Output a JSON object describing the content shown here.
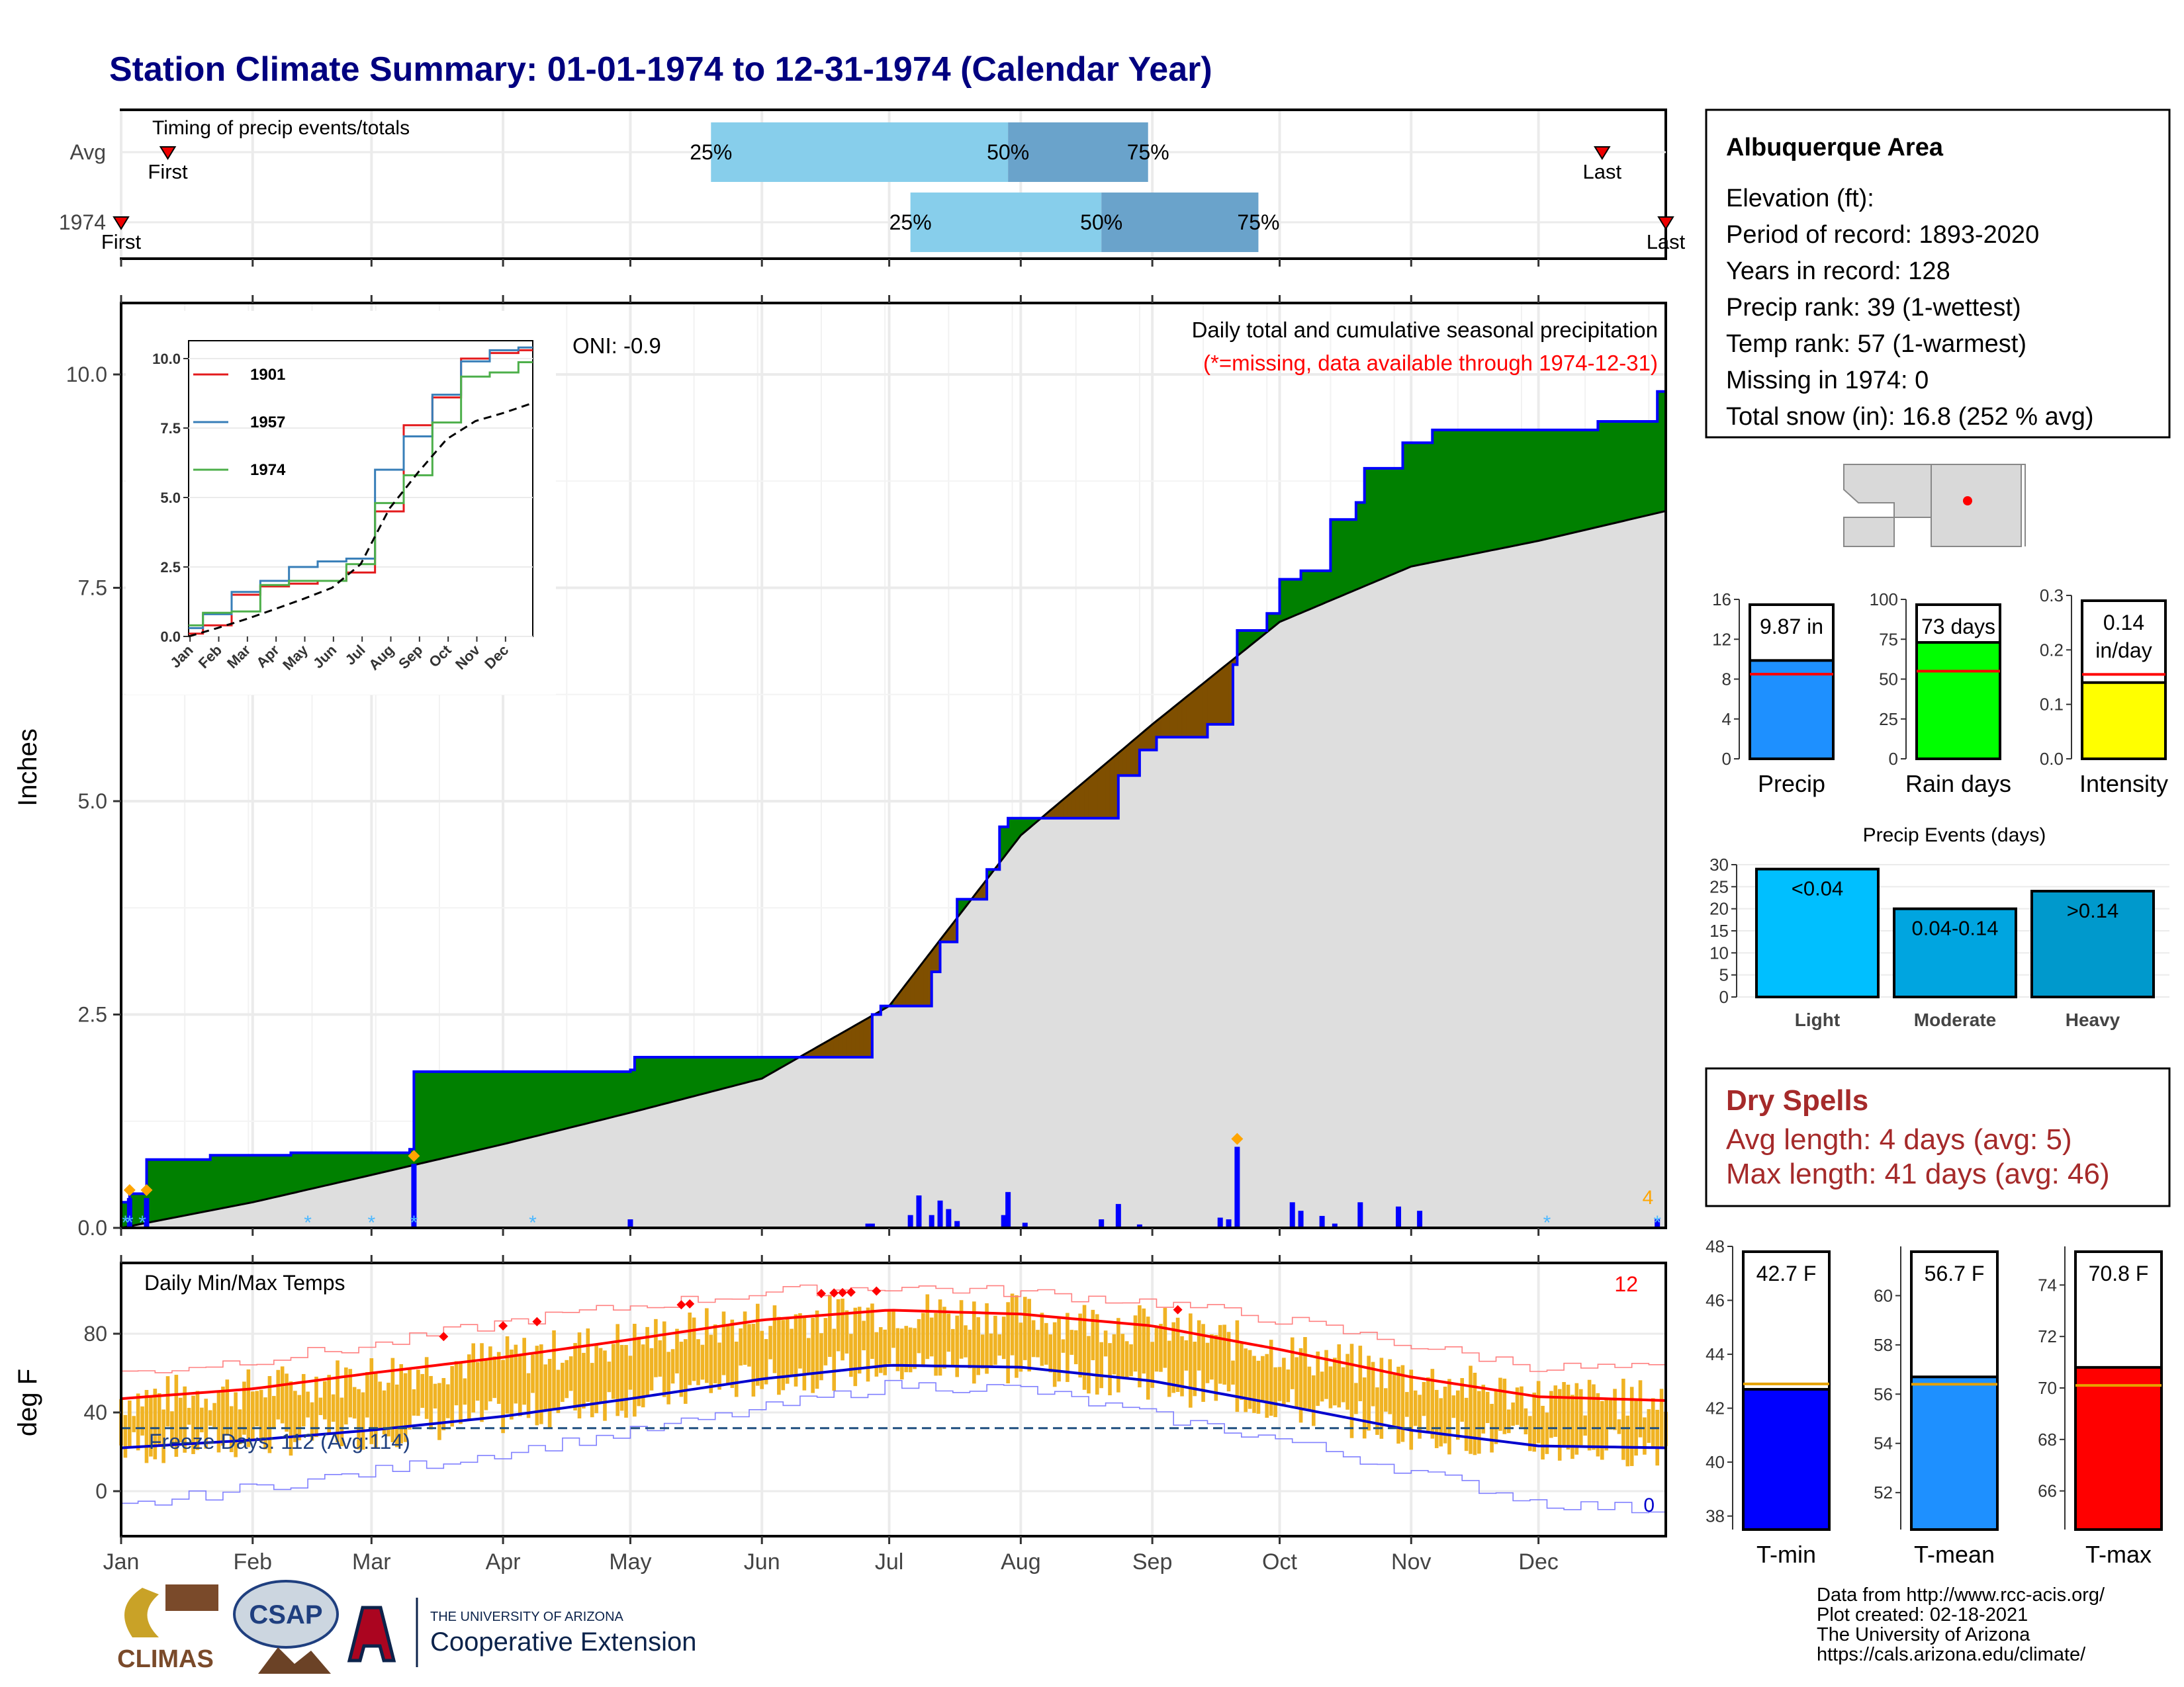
{
  "page": {
    "title": "Station Climate Summary: 01-01-1974 to 12-31-1974 (Calendar Year)",
    "months": [
      "Jan",
      "Feb",
      "Mar",
      "Apr",
      "May",
      "Jun",
      "Jul",
      "Aug",
      "Sep",
      "Oct",
      "Nov",
      "Dec"
    ]
  },
  "colors": {
    "title": "#000080",
    "above": "#008000",
    "below": "#7f4f00",
    "normal_fill": "#dedede",
    "current_line": "#0000ff",
    "event_light": "#87ceeb",
    "event_dark": "#6aa3cb",
    "tmax": "#ff0000",
    "tmin": "#0000cd",
    "bars": "#f0b323"
  },
  "timing": {
    "title": "Timing of precip events/totals",
    "rows": [
      {
        "label": "Avg",
        "first": "First",
        "last": "Last",
        "p25": "25%",
        "p50": "50%",
        "p75": "75%",
        "first_date": "1974-01-12",
        "last_date": "1974-12-16",
        "p25_date": "1974-05-20",
        "p50_date": "1974-07-29",
        "p75_date": "1974-08-31"
      },
      {
        "label": "1974",
        "first": "First",
        "last": "Last",
        "p25": "25%",
        "p50": "50%",
        "p75": "75%",
        "first_date": "1974-01-01",
        "last_date": "1974-12-31",
        "p25_date": "1974-07-06",
        "p50_date": "1974-08-20",
        "p75_date": "1974-09-26"
      }
    ]
  },
  "precip_panel": {
    "ylabel": "Inches",
    "heading": "Daily total and cumulative seasonal precipitation",
    "note": "(*=missing, data available through 1974-12-31)",
    "oni": "ONI: -0.9",
    "corner_count": "4",
    "yticks": [
      "0.0",
      "2.5",
      "5.0",
      "7.5",
      "10.0"
    ]
  },
  "inset": {
    "yticks": [
      "0.0",
      "2.5",
      "5.0",
      "7.5",
      "10.0"
    ],
    "months": [
      "Jan",
      "Feb",
      "Mar",
      "Apr",
      "May",
      "Jun",
      "Jul",
      "Aug",
      "Sep",
      "Oct",
      "Nov",
      "Dec"
    ],
    "legend": [
      {
        "name": "1901",
        "color": "#e31a1c"
      },
      {
        "name": "1957",
        "color": "#377eb8"
      },
      {
        "name": "1974",
        "color": "#4daf4a"
      }
    ]
  },
  "temp_panel": {
    "title": "Daily Min/Max Temps",
    "ylabel": "deg F",
    "freeze": "Freeze Days: 112 (Avg:114)",
    "max_count": "12",
    "min_count": "0",
    "yticks": [
      "0",
      "40",
      "80"
    ]
  },
  "info": {
    "station": "Albuquerque Area",
    "lines": [
      "Elevation (ft):",
      "Period of record: 1893-2020",
      "Years in record: 128",
      "Precip rank: 39 (1-wettest)",
      "Temp rank: 57 (1-warmest)",
      "Missing in 1974: 0",
      "Total snow (in): 16.8 (252 % avg)"
    ]
  },
  "mini": {
    "precip": {
      "label": "Precip",
      "value_text": "9.87 in",
      "value": 9.87,
      "avg": 8.5,
      "max": 16,
      "ticks": [
        "0",
        "4",
        "8",
        "12",
        "16"
      ],
      "color": "#1e90ff"
    },
    "raindays": {
      "label": "Rain days",
      "value_text": "73 days",
      "value": 73,
      "avg": 55,
      "max": 100,
      "ticks": [
        "0",
        "25",
        "50",
        "75",
        "100"
      ],
      "color": "#00ff00"
    },
    "intensity": {
      "label": "Intensity",
      "value_text": "0.14",
      "value_text2": "in/day",
      "value": 0.14,
      "avg": 0.155,
      "max": 0.3,
      "ticks": [
        "0.0",
        "0.1",
        "0.2",
        "0.3"
      ],
      "color": "#ffff00"
    }
  },
  "events": {
    "title": "Precip Events (days)",
    "ticks": [
      "0",
      "5",
      "10",
      "15",
      "20",
      "25",
      "30"
    ],
    "bars": [
      {
        "label": "Light",
        "text": "<0.04",
        "value": 29,
        "color": "#00bfff"
      },
      {
        "label": "Moderate",
        "text": "0.04-0.14",
        "value": 20,
        "color": "#00a5e0"
      },
      {
        "label": "Heavy",
        "text": ">0.14",
        "value": 24,
        "color": "#0099cc"
      }
    ]
  },
  "dry": {
    "title": "Dry Spells",
    "avg_line": "Avg length: 4 days (avg: 5)",
    "max_line": "Max length: 41 days (avg: 46)"
  },
  "temps": {
    "tmin": {
      "label": "T-min",
      "value_text": "42.7 F",
      "value": 42.7,
      "avg": 42.9,
      "min": 37.5,
      "max": 48,
      "ticks": [
        "38",
        "40",
        "42",
        "44",
        "46",
        "48"
      ],
      "color": "#0000ff"
    },
    "tmean": {
      "label": "T-mean",
      "value_text": "56.7 F",
      "value": 56.7,
      "avg": 56.4,
      "min": 50.5,
      "max": 62,
      "ticks": [
        "52",
        "54",
        "56",
        "58",
        "60"
      ],
      "color": "#1e90ff"
    },
    "tmax": {
      "label": "T-max",
      "value_text": "70.8 F",
      "value": 70.8,
      "avg": 70.1,
      "min": 64.5,
      "max": 75.5,
      "ticks": [
        "66",
        "68",
        "70",
        "72",
        "74"
      ],
      "color": "#ff0000"
    }
  },
  "footer": {
    "logo1": "CLIMAS",
    "logo2": "CSAP",
    "logo3_line1": "THE UNIVERSITY OF ARIZONA",
    "logo3_line2": "Cooperative Extension",
    "credits": [
      "Data from http://www.rcc-acis.org/",
      "Plot created: 02-18-2021",
      "The University of Arizona",
      "https://cals.arizona.edu/climate/"
    ]
  },
  "chart_data": {
    "type": "area",
    "title": "Station Climate Summary: 01-01-1974 to 12-31-1974 (Calendar Year)",
    "ylabel": "Inches",
    "ylim": [
      0,
      10.8
    ],
    "legend": "none",
    "grid": true,
    "series": [
      {
        "name": "1974",
        "dates": [
          "1974-01-01",
          "1974-01-03",
          "1974-01-07",
          "1974-01-22",
          "1974-02-10",
          "1974-03-10",
          "1974-03-11",
          "1974-05-01",
          "1974-05-02",
          "1974-06-12",
          "1974-06-27",
          "1974-06-29",
          "1974-07-11",
          "1974-07-13",
          "1974-07-17",
          "1974-07-24",
          "1974-07-27",
          "1974-07-29",
          "1974-08-24",
          "1974-08-29",
          "1974-09-02",
          "1974-09-14",
          "1974-09-20",
          "1974-09-21",
          "1974-09-28",
          "1974-10-01",
          "1974-10-06",
          "1974-10-13",
          "1974-10-19",
          "1974-10-21",
          "1974-10-30",
          "1974-11-06",
          "1974-12-15",
          "1974-12-29",
          "1974-12-31"
        ],
        "values": [
          0.3,
          0.4,
          0.8,
          0.85,
          0.88,
          0.92,
          1.83,
          1.85,
          2.0,
          2.0,
          2.5,
          2.6,
          3.0,
          3.35,
          3.85,
          4.2,
          4.7,
          4.8,
          5.3,
          5.6,
          5.75,
          5.9,
          6.6,
          7.0,
          7.2,
          7.6,
          7.7,
          8.3,
          8.5,
          8.9,
          9.2,
          9.35,
          9.45,
          9.8,
          9.87
        ]
      },
      {
        "name": "Avg",
        "dates": [
          "1974-01-01",
          "1974-02-01",
          "1974-03-01",
          "1974-04-01",
          "1974-05-01",
          "1974-06-01",
          "1974-07-01",
          "1974-08-01",
          "1974-09-01",
          "1974-10-01",
          "1974-11-01",
          "1974-12-01",
          "1974-12-31"
        ],
        "values": [
          0.0,
          0.3,
          0.62,
          0.98,
          1.35,
          1.75,
          2.6,
          4.6,
          5.9,
          7.1,
          7.75,
          8.05,
          8.4
        ]
      }
    ],
    "daily_totals": [
      {
        "date": "1974-01-03",
        "value": 0.35
      },
      {
        "date": "1974-01-07",
        "value": 0.35
      },
      {
        "date": "1974-03-11",
        "value": 0.75
      },
      {
        "date": "1974-05-01",
        "value": 0.1
      },
      {
        "date": "1974-06-26",
        "value": 0.05
      },
      {
        "date": "1974-06-27",
        "value": 0.05
      },
      {
        "date": "1974-07-06",
        "value": 0.15
      },
      {
        "date": "1974-07-08",
        "value": 0.38
      },
      {
        "date": "1974-07-11",
        "value": 0.15
      },
      {
        "date": "1974-07-13",
        "value": 0.32
      },
      {
        "date": "1974-07-15",
        "value": 0.22
      },
      {
        "date": "1974-07-17",
        "value": 0.08
      },
      {
        "date": "1974-07-28",
        "value": 0.15
      },
      {
        "date": "1974-07-29",
        "value": 0.42
      },
      {
        "date": "1974-08-02",
        "value": 0.06
      },
      {
        "date": "1974-08-20",
        "value": 0.1
      },
      {
        "date": "1974-08-24",
        "value": 0.28
      },
      {
        "date": "1974-08-29",
        "value": 0.04
      },
      {
        "date": "1974-09-17",
        "value": 0.12
      },
      {
        "date": "1974-09-19",
        "value": 0.1
      },
      {
        "date": "1974-09-21",
        "value": 0.95
      },
      {
        "date": "1974-10-04",
        "value": 0.3
      },
      {
        "date": "1974-10-06",
        "value": 0.2
      },
      {
        "date": "1974-10-11",
        "value": 0.14
      },
      {
        "date": "1974-10-14",
        "value": 0.05
      },
      {
        "date": "1974-10-20",
        "value": 0.3
      },
      {
        "date": "1974-10-29",
        "value": 0.25
      },
      {
        "date": "1974-11-03",
        "value": 0.2
      },
      {
        "date": "1974-12-29",
        "value": 0.1
      }
    ],
    "inset": {
      "type": "line",
      "ylim": [
        0,
        10.5
      ],
      "series": [
        {
          "name": "1901",
          "months": [
            0,
            1,
            2,
            3,
            4,
            5,
            6,
            7,
            8,
            9,
            10,
            11,
            12
          ],
          "values": [
            0.1,
            0.4,
            1.5,
            1.8,
            1.9,
            2.0,
            2.3,
            4.5,
            7.6,
            8.6,
            10.0,
            10.2,
            10.3
          ]
        },
        {
          "name": "1957",
          "months": [
            0,
            1,
            2,
            3,
            4,
            5,
            6,
            7,
            8,
            9,
            10,
            11,
            12
          ],
          "values": [
            0.3,
            0.8,
            1.6,
            2.0,
            2.5,
            2.7,
            2.8,
            6.0,
            7.2,
            8.7,
            9.9,
            10.3,
            10.4
          ]
        },
        {
          "name": "1974",
          "months": [
            0,
            1,
            2,
            3,
            4,
            5,
            6,
            7,
            8,
            9,
            10,
            11,
            12
          ],
          "values": [
            0.4,
            0.85,
            0.9,
            1.85,
            2.0,
            2.0,
            2.6,
            4.8,
            5.8,
            7.7,
            9.35,
            9.5,
            9.87
          ]
        },
        {
          "name": "Avg",
          "months": [
            0,
            1,
            2,
            3,
            4,
            5,
            6,
            7,
            8,
            9,
            10,
            11,
            12
          ],
          "values": [
            0.0,
            0.3,
            0.62,
            0.98,
            1.35,
            1.75,
            2.6,
            4.6,
            5.9,
            7.1,
            7.75,
            8.05,
            8.4
          ]
        }
      ]
    },
    "temperature": {
      "type": "line",
      "ylim": [
        -20,
        108
      ],
      "freeze_line": 32,
      "normal_max": {
        "months": [
          0,
          1,
          2,
          3,
          4,
          5,
          6,
          7,
          8,
          9,
          10,
          11,
          12
        ],
        "values": [
          47,
          52,
          60,
          68,
          77,
          87,
          92,
          90,
          84,
          72,
          58,
          48,
          46
        ]
      },
      "normal_min": {
        "months": [
          0,
          1,
          2,
          3,
          4,
          5,
          6,
          7,
          8,
          9,
          10,
          11,
          12
        ],
        "values": [
          22,
          26,
          31,
          38,
          47,
          57,
          64,
          63,
          56,
          44,
          31,
          23,
          22
        ]
      },
      "record_max": {
        "months": [
          0,
          1,
          2,
          3,
          4,
          5,
          6,
          7,
          8,
          9,
          10,
          11,
          12
        ],
        "values": [
          60,
          67,
          74,
          86,
          94,
          101,
          104,
          101,
          96,
          87,
          74,
          63,
          62
        ]
      },
      "record_min": {
        "months": [
          0,
          1,
          2,
          3,
          4,
          5,
          6,
          7,
          8,
          9,
          10,
          11,
          12
        ],
        "values": [
          -8,
          2,
          10,
          20,
          30,
          42,
          54,
          52,
          38,
          26,
          10,
          -6,
          -10
        ]
      }
    }
  }
}
